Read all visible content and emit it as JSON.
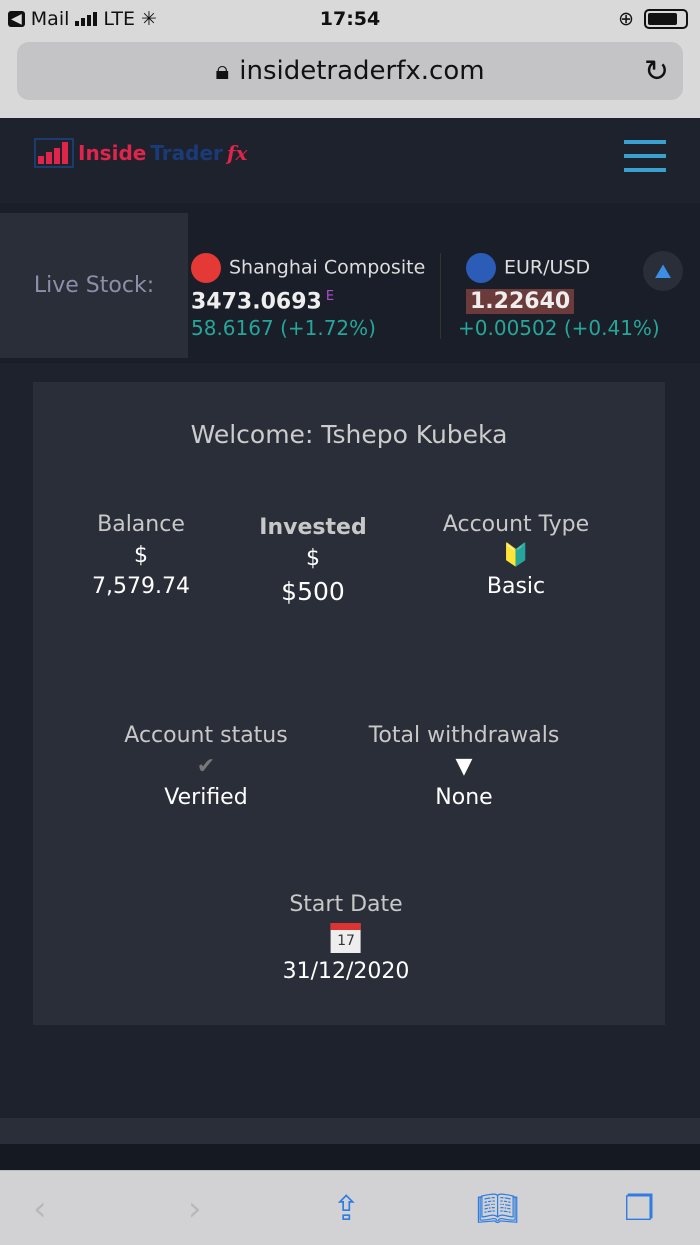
{
  "status_bar": {
    "back_app": "Mail",
    "carrier": "LTE",
    "time": "17:54"
  },
  "browser": {
    "url": "insidetraderfx.com"
  },
  "logo": {
    "text": "Inside Trader fx",
    "part1": "Inside",
    "part2": "Trader",
    "part3": "fx"
  },
  "ticker": {
    "label": "Live Stock:",
    "items": [
      {
        "name": "Shanghai Composite",
        "price": "3473.0693",
        "suffix": "E",
        "change": "58.6167 (+1.72%)"
      },
      {
        "name": "EUR/USD",
        "price": "1.22640",
        "change": "+0.00502 (+0.41%)"
      }
    ]
  },
  "dashboard": {
    "welcome": "Welcome: Tshepo Kubeka",
    "balance": {
      "label": "Balance",
      "currency": "$",
      "value": "7,579.74"
    },
    "invested": {
      "label": "Invested",
      "currency": "$",
      "value": "$500"
    },
    "account_type": {
      "label": "Account Type",
      "icon": "beginner-badge-icon",
      "value": "Basic"
    },
    "account_status": {
      "label": "Account status",
      "icon": "checkmark-icon",
      "value": "Verified"
    },
    "withdrawals": {
      "label": "Total withdrawals",
      "icon": "triangle-down-icon",
      "value": "None"
    },
    "start_date": {
      "label": "Start Date",
      "icon": "calendar-icon",
      "calendar_day": "17",
      "value": "31/12/2020"
    }
  },
  "colors": {
    "accent": "#3aa0d0",
    "positive": "#26a69a",
    "logo_red": "#e0244a",
    "ios_blue": "#2f7de1"
  }
}
